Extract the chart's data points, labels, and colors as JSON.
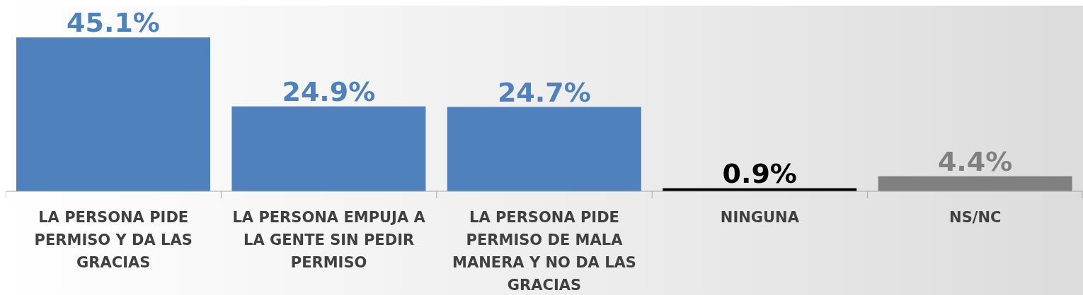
{
  "chart_data": {
    "type": "bar",
    "categories": [
      "LA PERSONA PIDE PERMISO Y DA LAS GRACIAS",
      "LA PERSONA EMPUJA A LA GENTE SIN PEDIR PERMISO",
      "LA PERSONA PIDE PERMISO DE MALA MANERA Y NO DA LAS GRACIAS",
      "NINGUNA",
      "NS/NC"
    ],
    "values": [
      45.1,
      24.9,
      24.7,
      0.9,
      4.4
    ],
    "colors": [
      "#4f81bd",
      "#4f81bd",
      "#4f81bd",
      "#000000",
      "#808080"
    ],
    "value_labels": [
      "45.1%",
      "24.9%",
      "24.7%",
      "0.9%",
      "4.4%"
    ],
    "grid": false,
    "legend": false
  }
}
